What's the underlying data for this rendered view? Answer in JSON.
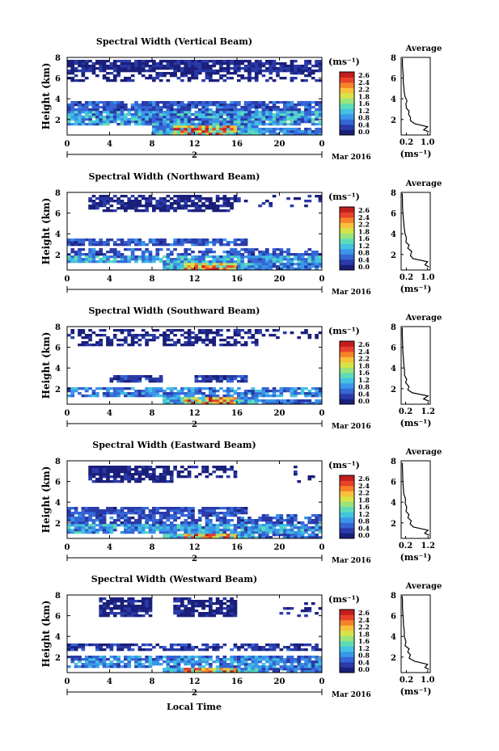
{
  "figure": {
    "date_label": "Mar 2016",
    "xlabel": "Local Time",
    "colorbar_unit": "(ms⁻¹)",
    "colorbar_ticks": [
      "2.6",
      "2.4",
      "2.2",
      "1.8",
      "1.6",
      "1.2",
      "0.8",
      "0.4",
      "0.0"
    ],
    "average_title": "Average",
    "average_xlabel": "(ms⁻¹)",
    "colormap": [
      "#1a1f7a",
      "#2a3aa8",
      "#3566d6",
      "#3a96e8",
      "#43c2e2",
      "#5fdcb7",
      "#9be47c",
      "#d7e448",
      "#f7c13a",
      "#f5822b",
      "#e9412a",
      "#c21d1f"
    ],
    "background_color": "#ffffff"
  },
  "chart_data": [
    {
      "type": "heatmap",
      "title": "Spectral Width (Vertical Beam)",
      "ylabel": "Height (km)",
      "xlim": [
        0,
        24
      ],
      "ylim": [
        0.5,
        8
      ],
      "xticks": [
        "0",
        "4",
        "8",
        "12",
        "16",
        "20",
        "0"
      ],
      "yticks": [
        "8",
        "6",
        "4",
        "2"
      ],
      "day_labels": [
        "2"
      ],
      "colorbar_range": [
        0.0,
        2.6
      ],
      "average": {
        "xticks": [
          "0.2",
          "1.0"
        ],
        "xlim": [
          0.0,
          1.1
        ],
        "yticks": [
          "8",
          "6",
          "4",
          "2"
        ],
        "profile": [
          [
            1.05,
            0.8
          ],
          [
            0.85,
            1.0
          ],
          [
            1.0,
            1.3
          ],
          [
            0.5,
            1.6
          ],
          [
            0.35,
            1.9
          ],
          [
            0.35,
            2.2
          ],
          [
            0.28,
            2.5
          ],
          [
            0.3,
            2.8
          ],
          [
            0.2,
            3.1
          ],
          [
            0.18,
            3.5
          ],
          [
            0.22,
            3.8
          ],
          [
            0.15,
            4.2
          ],
          [
            0.12,
            4.6
          ],
          [
            0.1,
            5.2
          ],
          [
            0.08,
            5.6
          ],
          [
            0.08,
            6.2
          ],
          [
            0.06,
            6.8
          ],
          [
            0.05,
            7.3
          ],
          [
            0.05,
            7.9
          ]
        ]
      }
    },
    {
      "type": "heatmap",
      "title": "Spectral Width (Northward Beam)",
      "ylabel": "Height (km)",
      "xlim": [
        0,
        24
      ],
      "ylim": [
        0.5,
        8
      ],
      "xticks": [
        "0",
        "4",
        "8",
        "12",
        "16",
        "20",
        "0"
      ],
      "yticks": [
        "8",
        "6",
        "4",
        "2"
      ],
      "day_labels": [],
      "colorbar_range": [
        0.0,
        2.6
      ],
      "average": {
        "xticks": [
          "0.2",
          "1.0"
        ],
        "xlim": [
          0.0,
          1.1
        ],
        "yticks": [
          "8",
          "6",
          "4",
          "2"
        ],
        "profile": [
          [
            1.05,
            0.8
          ],
          [
            0.9,
            1.0
          ],
          [
            1.0,
            1.3
          ],
          [
            0.45,
            1.6
          ],
          [
            0.35,
            1.9
          ],
          [
            0.4,
            2.3
          ],
          [
            0.25,
            2.6
          ],
          [
            0.3,
            2.9
          ],
          [
            0.18,
            3.2
          ],
          [
            0.2,
            3.6
          ],
          [
            0.15,
            4.0
          ],
          [
            0.12,
            4.5
          ],
          [
            0.1,
            5.0
          ],
          [
            0.08,
            5.6
          ],
          [
            0.06,
            6.2
          ],
          [
            0.05,
            6.8
          ],
          [
            0.05,
            7.4
          ],
          [
            0.04,
            7.9
          ]
        ]
      }
    },
    {
      "type": "heatmap",
      "title": "Spectral Width (Southward Beam)",
      "ylabel": "Height (km)",
      "xlim": [
        0,
        24
      ],
      "ylim": [
        0.5,
        8
      ],
      "xticks": [
        "0",
        "4",
        "8",
        "12",
        "16",
        "20",
        "0"
      ],
      "yticks": [
        "8",
        "6",
        "4",
        "2"
      ],
      "day_labels": [
        "2"
      ],
      "colorbar_range": [
        0.0,
        2.6
      ],
      "average": {
        "xticks": [
          "0.2",
          "1.2"
        ],
        "xlim": [
          0.0,
          1.3
        ],
        "yticks": [
          "8",
          "6",
          "4",
          "2"
        ],
        "profile": [
          [
            1.25,
            0.8
          ],
          [
            1.0,
            1.0
          ],
          [
            1.2,
            1.3
          ],
          [
            0.5,
            1.6
          ],
          [
            0.3,
            1.9
          ],
          [
            0.35,
            2.2
          ],
          [
            0.2,
            2.6
          ],
          [
            0.25,
            2.9
          ],
          [
            0.15,
            3.3
          ],
          [
            0.15,
            3.8
          ],
          [
            0.12,
            4.3
          ],
          [
            0.1,
            4.9
          ],
          [
            0.08,
            5.5
          ],
          [
            0.07,
            6.0
          ],
          [
            0.06,
            6.6
          ],
          [
            0.05,
            7.2
          ],
          [
            0.05,
            7.9
          ]
        ]
      }
    },
    {
      "type": "heatmap",
      "title": "Spectral Width (Eastward Beam)",
      "ylabel": "Height (km)",
      "xlim": [
        0,
        24
      ],
      "ylim": [
        0.5,
        8
      ],
      "xticks": [
        "0",
        "4",
        "8",
        "12",
        "16",
        "20",
        "0"
      ],
      "yticks": [
        "8",
        "6",
        "4",
        "2"
      ],
      "day_labels": [
        "2"
      ],
      "colorbar_range": [
        0.0,
        2.6
      ],
      "average": {
        "xticks": [
          "0.2",
          "1.2"
        ],
        "xlim": [
          0.0,
          1.3
        ],
        "yticks": [
          "8",
          "6",
          "4",
          "2"
        ],
        "profile": [
          [
            1.25,
            0.8
          ],
          [
            1.05,
            1.0
          ],
          [
            1.2,
            1.3
          ],
          [
            0.55,
            1.6
          ],
          [
            0.4,
            1.9
          ],
          [
            0.45,
            2.2
          ],
          [
            0.3,
            2.5
          ],
          [
            0.35,
            2.8
          ],
          [
            0.22,
            3.1
          ],
          [
            0.25,
            3.5
          ],
          [
            0.18,
            3.9
          ],
          [
            0.2,
            4.3
          ],
          [
            0.12,
            4.8
          ],
          [
            0.1,
            5.3
          ],
          [
            0.08,
            5.9
          ],
          [
            0.07,
            6.5
          ],
          [
            0.06,
            7.1
          ],
          [
            0.05,
            7.8
          ]
        ]
      }
    },
    {
      "type": "heatmap",
      "title": "Spectral Width (Westward Beam)",
      "ylabel": "Height (km)",
      "xlim": [
        0,
        24
      ],
      "ylim": [
        0.5,
        8
      ],
      "xticks": [
        "0",
        "4",
        "8",
        "12",
        "16",
        "20",
        "0"
      ],
      "yticks": [
        "8",
        "6",
        "4",
        "2"
      ],
      "day_labels": [
        "2"
      ],
      "colorbar_range": [
        0.0,
        2.6
      ],
      "average": {
        "xticks": [
          "0.2",
          "1.0"
        ],
        "xlim": [
          0.0,
          1.1
        ],
        "yticks": [
          "8",
          "6",
          "4",
          "2"
        ],
        "profile": [
          [
            1.05,
            0.8
          ],
          [
            0.9,
            1.0
          ],
          [
            1.0,
            1.3
          ],
          [
            0.5,
            1.6
          ],
          [
            0.3,
            1.9
          ],
          [
            0.35,
            2.2
          ],
          [
            0.25,
            2.5
          ],
          [
            0.3,
            2.8
          ],
          [
            0.15,
            3.1
          ],
          [
            0.18,
            3.5
          ],
          [
            0.12,
            4.0
          ],
          [
            0.12,
            4.5
          ],
          [
            0.09,
            5.1
          ],
          [
            0.08,
            5.7
          ],
          [
            0.06,
            6.3
          ],
          [
            0.05,
            6.9
          ],
          [
            0.05,
            7.5
          ],
          [
            0.04,
            7.9
          ]
        ]
      }
    }
  ]
}
